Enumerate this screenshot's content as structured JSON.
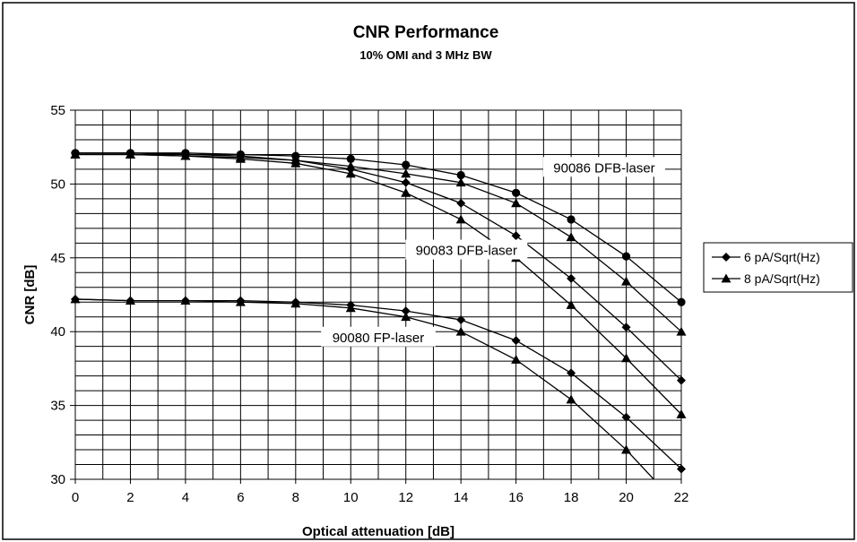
{
  "chart_data": {
    "type": "line",
    "title": "CNR Performance",
    "subtitle": "10% OMI and 3 MHz BW",
    "xlabel": "Optical attenuation [dB]",
    "ylabel": "CNR [dB]",
    "xlim": [
      0,
      22
    ],
    "ylim": [
      30,
      55
    ],
    "x_ticks": [
      0,
      2,
      4,
      6,
      8,
      10,
      12,
      14,
      16,
      18,
      20,
      22
    ],
    "y_ticks": [
      30,
      35,
      40,
      45,
      50,
      55
    ],
    "grid": true,
    "legend_position": "right",
    "legend": [
      {
        "label": "6 pA/Sqrt(Hz)",
        "marker": "diamond"
      },
      {
        "label": "8 pA/Sqrt(Hz)",
        "marker": "triangle"
      }
    ],
    "annotations": [
      {
        "text": "90086 DFB-laser",
        "x": 19.2,
        "y": 51.1
      },
      {
        "text": "90083 DFB-laser",
        "x": 14.2,
        "y": 45.5
      },
      {
        "text": "90080 FP-laser",
        "x": 11.0,
        "y": 39.6
      }
    ],
    "x": [
      0,
      2,
      4,
      6,
      8,
      10,
      12,
      14,
      16,
      18,
      20,
      22
    ],
    "series": [
      {
        "group": "90086 DFB-laser",
        "marker": "circle",
        "values": [
          52.1,
          52.1,
          52.1,
          52.0,
          51.9,
          51.7,
          51.3,
          50.6,
          49.4,
          47.6,
          45.1,
          42.0
        ]
      },
      {
        "group": "90086 DFB-laser",
        "marker": "triangle",
        "values": [
          52.0,
          52.0,
          51.9,
          51.8,
          51.6,
          51.2,
          50.7,
          50.1,
          48.7,
          46.4,
          43.4,
          40.0
        ]
      },
      {
        "group": "90083 DFB-laser",
        "marker": "diamond",
        "values": [
          52.1,
          52.1,
          52.0,
          51.9,
          51.6,
          51.0,
          50.1,
          48.7,
          46.5,
          43.6,
          40.3,
          36.7
        ]
      },
      {
        "group": "90083 DFB-laser",
        "marker": "triangle",
        "values": [
          52.0,
          52.0,
          51.9,
          51.7,
          51.4,
          50.7,
          49.4,
          47.6,
          45.0,
          41.8,
          38.2,
          34.4
        ]
      },
      {
        "group": "90080 FP-laser",
        "marker": "diamond",
        "values": [
          42.2,
          42.1,
          42.1,
          42.1,
          42.0,
          41.8,
          41.4,
          40.8,
          39.4,
          37.2,
          34.2,
          30.7
        ]
      },
      {
        "group": "90080 FP-laser",
        "marker": "triangle",
        "values": [
          42.2,
          42.1,
          42.1,
          42.0,
          41.9,
          41.6,
          41.0,
          40.0,
          38.1,
          35.4,
          32.0,
          28.0
        ]
      }
    ]
  }
}
